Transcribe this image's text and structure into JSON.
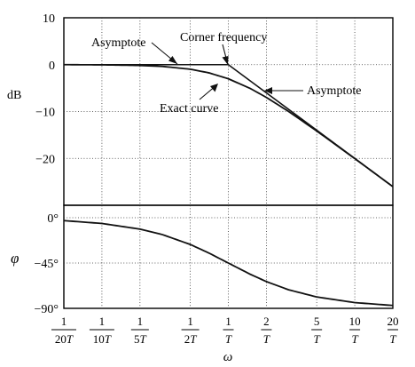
{
  "chart_data": [
    {
      "type": "line",
      "panel": "magnitude",
      "ylabel": "dB",
      "xscale": "log",
      "xlim": [
        0.05,
        20
      ],
      "ylim": [
        -30,
        10
      ],
      "yticks": [
        10,
        0,
        -10,
        -20
      ],
      "ytick_labels": [
        "10",
        "0",
        "−10",
        "−20"
      ],
      "series": [
        {
          "x": [
            0.05,
            0.1,
            0.2,
            0.3,
            0.5,
            0.7,
            1,
            1.5,
            2,
            3,
            5,
            10,
            20
          ],
          "y": [
            0,
            -0.04,
            -0.17,
            -0.37,
            -0.97,
            -1.74,
            -3.01,
            -5.12,
            -6.99,
            -10.0,
            -14.15,
            -20.04,
            -26.03
          ]
        },
        {
          "x": [
            0.05,
            1,
            20
          ],
          "y": [
            0,
            0,
            -26.02
          ]
        }
      ],
      "annotations": [
        {
          "text": "Asymptote",
          "x": 0.75,
          "y": 0
        },
        {
          "text": "Corner frequency",
          "x": 1,
          "y": 0
        },
        {
          "text": "Asymptote",
          "x": 3,
          "y": -9.5
        },
        {
          "text": "Exact curve",
          "x": 0.55,
          "y": -2.3
        }
      ]
    },
    {
      "type": "line",
      "panel": "phase",
      "ylabel": "φ",
      "xscale": "log",
      "xlim": [
        0.05,
        20
      ],
      "ylim": [
        -90,
        0
      ],
      "yticks": [
        0,
        -45,
        -90
      ],
      "ytick_labels": [
        "0°",
        "−45°",
        "−90°"
      ],
      "series": [
        {
          "x": [
            0.05,
            0.1,
            0.2,
            0.3,
            0.5,
            0.7,
            1,
            1.5,
            2,
            3,
            5,
            10,
            20
          ],
          "y": [
            -2.86,
            -5.71,
            -11.31,
            -16.7,
            -26.57,
            -34.99,
            -45,
            -56.31,
            -63.43,
            -71.57,
            -78.69,
            -84.29,
            -87.14
          ]
        }
      ]
    }
  ],
  "xaxis": {
    "label": "ω",
    "ticks": [
      {
        "x": 0.05,
        "num": "1",
        "den": "20T"
      },
      {
        "x": 0.1,
        "num": "1",
        "den": "10T"
      },
      {
        "x": 0.2,
        "num": "1",
        "den": "5T"
      },
      {
        "x": 0.5,
        "num": "1",
        "den": "2T"
      },
      {
        "x": 1,
        "num": "1",
        "den": "T"
      },
      {
        "x": 2,
        "num": "2",
        "den": "T"
      },
      {
        "x": 5,
        "num": "5",
        "den": "T"
      },
      {
        "x": 10,
        "num": "10",
        "den": "T"
      },
      {
        "x": 20,
        "num": "20",
        "den": "T"
      }
    ]
  }
}
